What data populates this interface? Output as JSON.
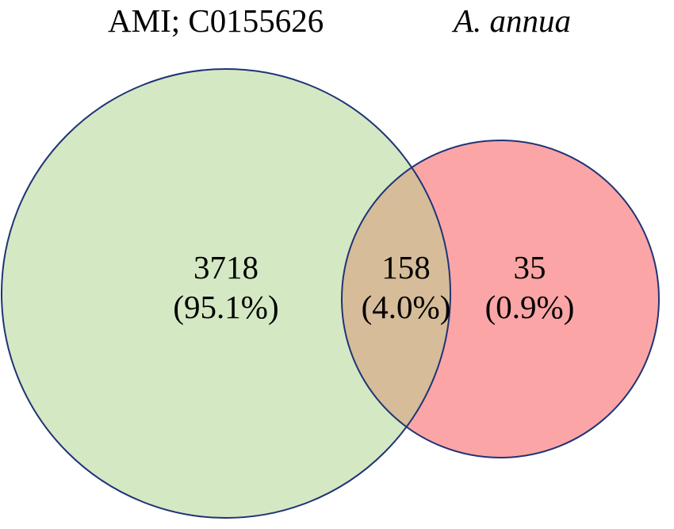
{
  "sets": [
    {
      "name": "AMI; C0155626",
      "color": "#d5e8c4"
    },
    {
      "name": "A. annua",
      "color": "#fba5a6"
    }
  ],
  "overlap_color": "#d6bc98",
  "outline_color": "#1f3476",
  "regions": [
    {
      "id": "ami_only",
      "count": "3718",
      "percent": "(95.1%)"
    },
    {
      "id": "both",
      "count": "158",
      "percent": "(4.0%)"
    },
    {
      "id": "annua_only",
      "count": "35",
      "percent": "(0.9%)"
    }
  ]
}
